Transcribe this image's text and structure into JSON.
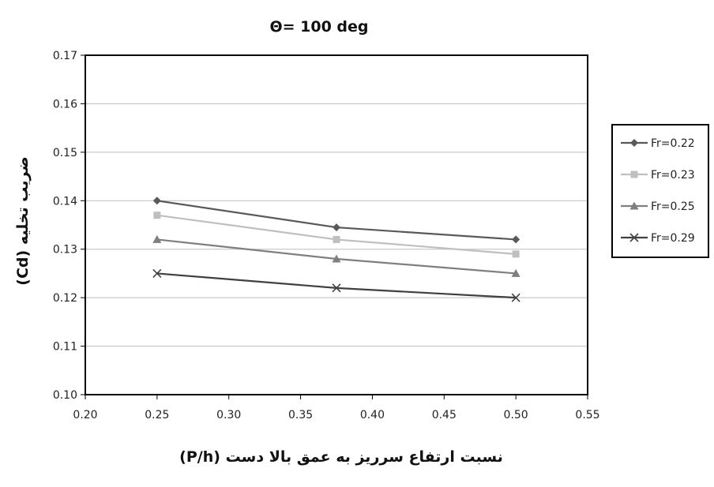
{
  "chart_data": {
    "type": "line",
    "title": "Θ= 100 deg",
    "xlabel": "نسبت ارتفاع سرریز به عمق بالا دست (P/h)",
    "ylabel": "ضریب تخلیه (Cd)",
    "xlim": [
      0.2,
      0.55
    ],
    "ylim": [
      0.1,
      0.17
    ],
    "x_ticks": [
      "0.20",
      "0.25",
      "0.30",
      "0.35",
      "0.40",
      "0.45",
      "0.50",
      "0.55"
    ],
    "y_ticks": [
      "0.10",
      "0.11",
      "0.12",
      "0.13",
      "0.14",
      "0.15",
      "0.16",
      "0.17"
    ],
    "grid": "horizontal",
    "legend_position": "right",
    "series": [
      {
        "name": "Fr=0.22",
        "marker": "diamond",
        "color": "#595959",
        "x": [
          0.25,
          0.375,
          0.5
        ],
        "y": [
          0.14,
          0.1345,
          0.132
        ]
      },
      {
        "name": "Fr=0.23",
        "marker": "square",
        "color": "#bfbfbf",
        "x": [
          0.25,
          0.375,
          0.5
        ],
        "y": [
          0.137,
          0.132,
          0.129
        ]
      },
      {
        "name": "Fr=0.25",
        "marker": "triangle",
        "color": "#7f7f7f",
        "x": [
          0.25,
          0.375,
          0.5
        ],
        "y": [
          0.132,
          0.128,
          0.125
        ]
      },
      {
        "name": "Fr=0.29",
        "marker": "x",
        "color": "#404040",
        "x": [
          0.25,
          0.375,
          0.5
        ],
        "y": [
          0.125,
          0.122,
          0.12
        ]
      }
    ]
  }
}
